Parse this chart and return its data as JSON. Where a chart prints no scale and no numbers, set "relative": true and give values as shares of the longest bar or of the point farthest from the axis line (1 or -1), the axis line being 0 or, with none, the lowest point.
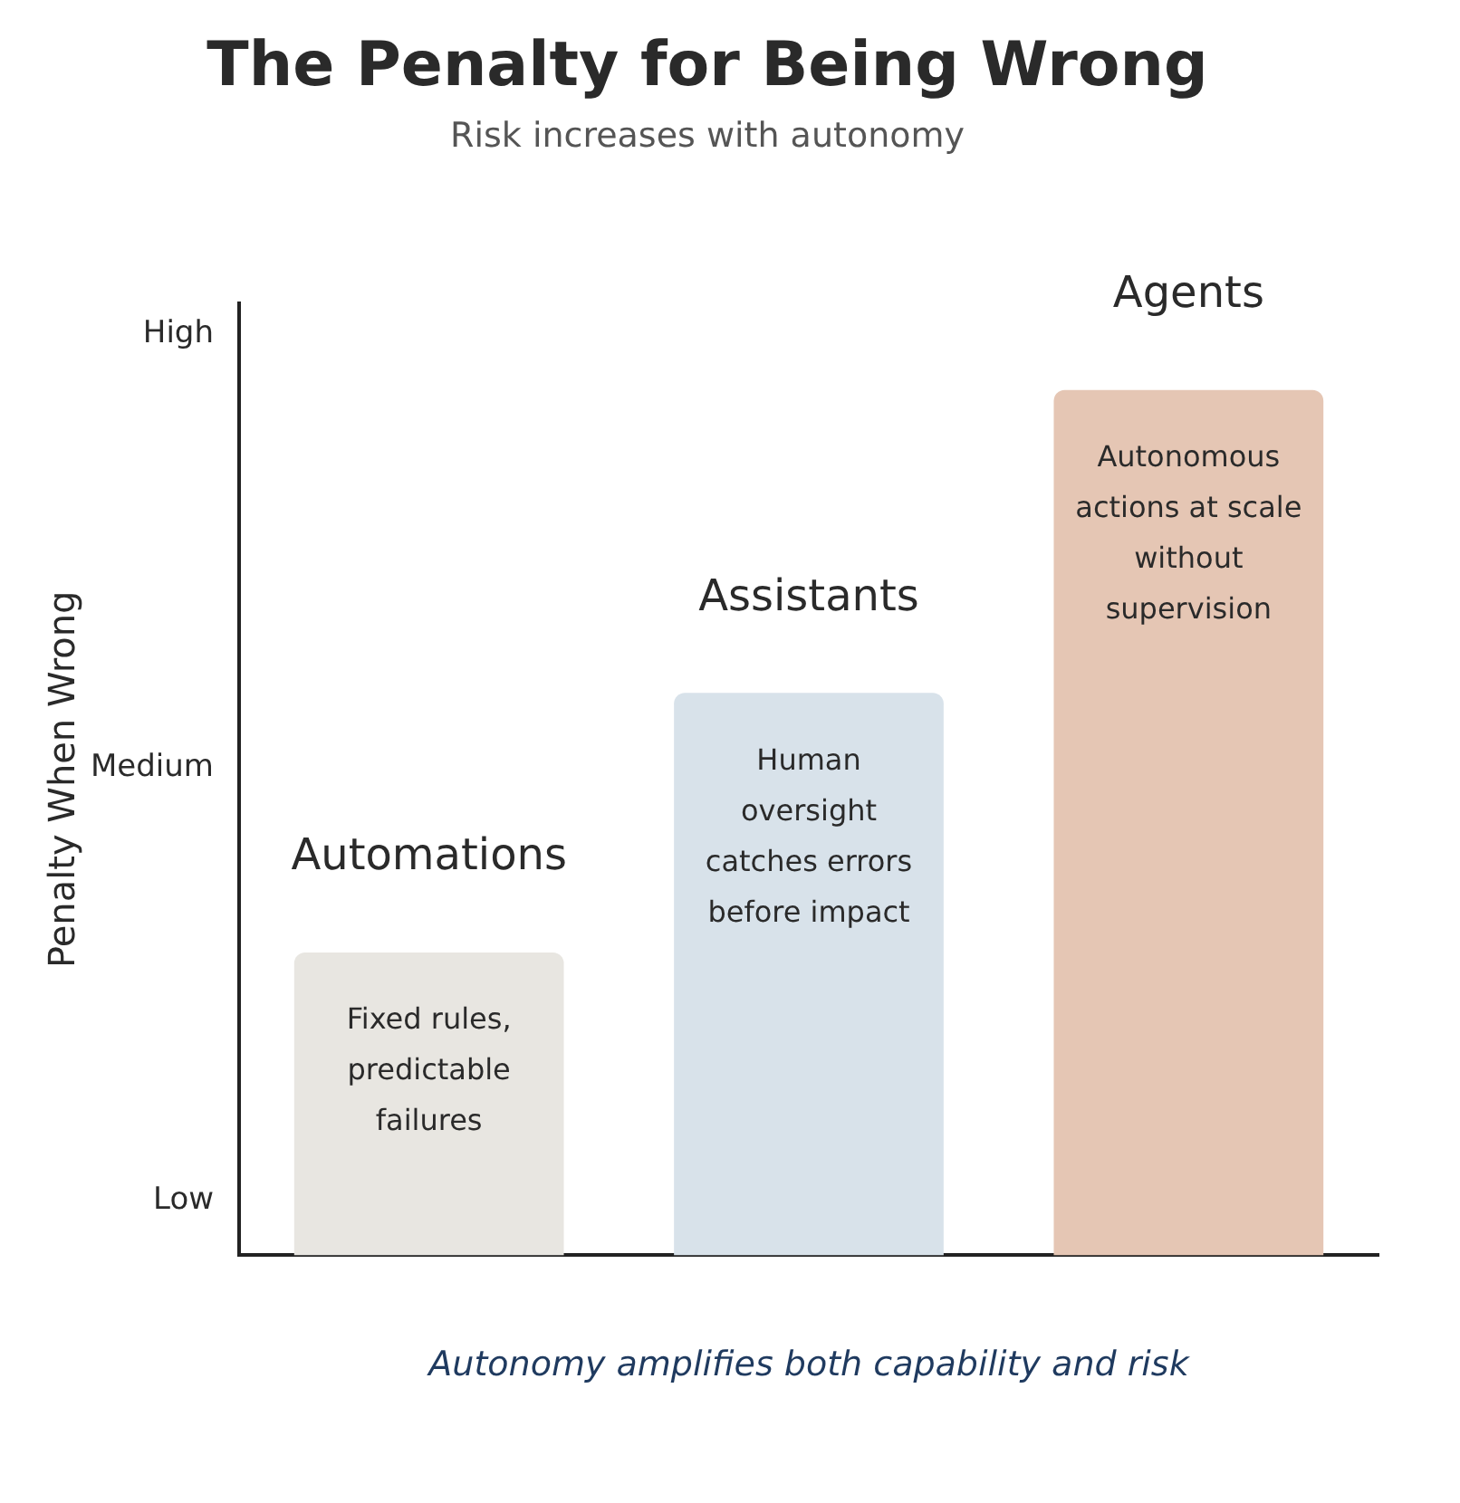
{
  "chart_data": {
    "type": "bar",
    "title": "The Penalty for Being Wrong",
    "subtitle": "Risk increases with autonomy",
    "xlabel": "Autonomy amplifies both capability and risk",
    "ylabel": "Penalty When Wrong",
    "categories": [
      "Automations",
      "Assistants",
      "Agents"
    ],
    "values": [
      0.35,
      0.65,
      1
    ],
    "colors": [
      "#e8e6e1",
      "#d8e2ea",
      "#e5c6b4"
    ],
    "relative": true,
    "annotations": [
      "Low",
      "Medium",
      "High",
      {
        "text": "Fixed rules, predictable failures",
        "x": "Automations",
        "y": 0.35
      },
      {
        "text": "Human oversight catches errors before impact",
        "x": "Assistants",
        "y": 0.65
      },
      {
        "text": "Autonomous actions at scale without supervision",
        "x": "Agents",
        "y": 1
      }
    ],
    "grid": false,
    "legend": false
  }
}
